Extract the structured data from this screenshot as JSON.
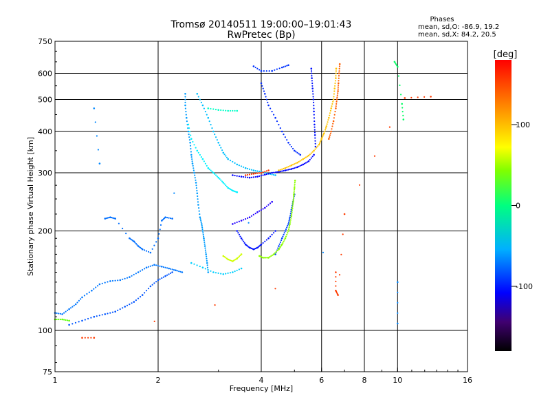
{
  "chart_data": {
    "type": "scatter",
    "title": "Tromsø 20140511 19:00:00–19:01:43",
    "subtitle": "RwPretec (Bp)",
    "stats": {
      "heading": "Phases",
      "line1": "mean, sd,O: -86.9, 19.2",
      "line2": "mean, sd,X:  84.2, 20.5"
    },
    "xlabel": "Frequency [MHz]",
    "ylabel": "Stationary phase Virtual Height [km]",
    "x_scale": "log",
    "y_scale": "log",
    "xlim": [
      1,
      16
    ],
    "ylim": [
      75,
      750
    ],
    "x_ticks": [
      1,
      2,
      4,
      6,
      8,
      10,
      16
    ],
    "y_ticks": [
      75,
      100,
      200,
      300,
      400,
      500,
      600,
      750
    ],
    "x_gridlines": [
      2,
      4,
      6,
      8,
      10
    ],
    "y_gridlines": [
      100,
      200,
      300,
      400,
      500,
      600
    ],
    "grid": true,
    "colorbar": {
      "label": "[deg]",
      "range": [
        -180,
        180
      ],
      "ticks": [
        -100,
        0,
        100
      ]
    },
    "series": [
      {
        "phase": -95,
        "points": [
          [
            1.0,
            113
          ],
          [
            1.05,
            112
          ],
          [
            1.1,
            116
          ],
          [
            1.15,
            120
          ],
          [
            1.2,
            126
          ],
          [
            1.28,
            132
          ],
          [
            1.35,
            138
          ],
          [
            1.45,
            141
          ],
          [
            1.55,
            142
          ],
          [
            1.65,
            145
          ],
          [
            1.75,
            150
          ],
          [
            1.85,
            155
          ],
          [
            1.95,
            158
          ],
          [
            2.05,
            156
          ],
          [
            2.15,
            154
          ],
          [
            2.25,
            152
          ],
          [
            2.35,
            150
          ]
        ]
      },
      {
        "phase": 45,
        "points": [
          [
            1.0,
            108
          ],
          [
            1.05,
            108
          ],
          [
            1.1,
            107
          ]
        ]
      },
      {
        "phase": -105,
        "points": [
          [
            1.1,
            104
          ],
          [
            1.2,
            107
          ],
          [
            1.3,
            110
          ],
          [
            1.4,
            112
          ],
          [
            1.5,
            114
          ],
          [
            1.6,
            118
          ],
          [
            1.7,
            122
          ],
          [
            1.8,
            128
          ],
          [
            1.9,
            136
          ],
          [
            2.0,
            142
          ],
          [
            2.1,
            146
          ],
          [
            2.2,
            150
          ]
        ]
      },
      {
        "phase": -98,
        "points": [
          [
            1.4,
            218
          ],
          [
            1.45,
            220
          ],
          [
            1.5,
            218
          ],
          [
            1.65,
            190
          ],
          [
            1.7,
            186
          ],
          [
            1.75,
            180
          ],
          [
            1.8,
            176
          ],
          [
            1.9,
            172
          ],
          [
            2.0,
            190
          ],
          [
            2.05,
            215
          ],
          [
            2.1,
            220
          ],
          [
            2.2,
            218
          ]
        ]
      },
      {
        "phase": -85,
        "points": [
          [
            2.4,
            520
          ],
          [
            2.4,
            480
          ],
          [
            2.42,
            440
          ],
          [
            2.45,
            400
          ],
          [
            2.48,
            370
          ],
          [
            2.5,
            340
          ],
          [
            2.52,
            320
          ],
          [
            2.55,
            300
          ],
          [
            2.58,
            280
          ],
          [
            2.6,
            260
          ],
          [
            2.62,
            240
          ],
          [
            2.65,
            220
          ],
          [
            2.68,
            210
          ],
          [
            2.7,
            200
          ],
          [
            2.72,
            190
          ],
          [
            2.74,
            180
          ],
          [
            2.76,
            170
          ],
          [
            2.78,
            160
          ],
          [
            2.8,
            150
          ]
        ]
      },
      {
        "phase": -60,
        "points": [
          [
            2.45,
            420
          ],
          [
            2.5,
            380
          ],
          [
            2.6,
            350
          ],
          [
            2.7,
            330
          ],
          [
            2.8,
            310
          ],
          [
            2.9,
            300
          ],
          [
            3.0,
            290
          ],
          [
            3.1,
            280
          ],
          [
            3.2,
            270
          ],
          [
            3.3,
            265
          ],
          [
            3.4,
            262
          ]
        ]
      },
      {
        "phase": -75,
        "points": [
          [
            2.6,
            520
          ],
          [
            2.7,
            480
          ],
          [
            2.8,
            440
          ],
          [
            2.9,
            400
          ],
          [
            3.0,
            370
          ],
          [
            3.1,
            345
          ],
          [
            3.2,
            330
          ],
          [
            3.4,
            318
          ],
          [
            3.6,
            310
          ],
          [
            3.8,
            305
          ],
          [
            4.0,
            302
          ],
          [
            4.2,
            298
          ],
          [
            4.4,
            295
          ]
        ]
      },
      {
        "phase": -130,
        "points": [
          [
            3.3,
            295
          ],
          [
            3.5,
            292
          ],
          [
            3.7,
            290
          ],
          [
            3.9,
            292
          ],
          [
            4.1,
            296
          ],
          [
            4.3,
            300
          ],
          [
            4.5,
            302
          ],
          [
            4.7,
            305
          ],
          [
            4.9,
            308
          ],
          [
            5.1,
            312
          ],
          [
            5.3,
            318
          ],
          [
            5.5,
            325
          ],
          [
            5.7,
            340
          ]
        ]
      },
      {
        "phase": -125,
        "points": [
          [
            5.6,
            620
          ],
          [
            5.62,
            580
          ],
          [
            5.65,
            540
          ],
          [
            5.68,
            500
          ],
          [
            5.7,
            460
          ],
          [
            5.72,
            420
          ],
          [
            5.74,
            390
          ],
          [
            5.76,
            360
          ]
        ]
      },
      {
        "phase": -118,
        "points": [
          [
            4.0,
            560
          ],
          [
            4.1,
            520
          ],
          [
            4.2,
            480
          ],
          [
            4.4,
            440
          ],
          [
            4.6,
            400
          ],
          [
            4.8,
            370
          ],
          [
            5.0,
            350
          ],
          [
            5.2,
            340
          ]
        ]
      },
      {
        "phase": -110,
        "points": [
          [
            4.4,
            170
          ],
          [
            4.5,
            180
          ],
          [
            4.6,
            190
          ],
          [
            4.7,
            200
          ],
          [
            4.8,
            210
          ],
          [
            4.85,
            220
          ],
          [
            4.9,
            232
          ],
          [
            4.95,
            245
          ],
          [
            5.0,
            258
          ]
        ]
      },
      {
        "phase": -125,
        "points": [
          [
            3.4,
            200
          ],
          [
            3.5,
            190
          ],
          [
            3.6,
            182
          ],
          [
            3.7,
            178
          ],
          [
            3.8,
            176
          ],
          [
            3.9,
            178
          ],
          [
            4.0,
            182
          ],
          [
            4.2,
            190
          ],
          [
            4.4,
            200
          ]
        ]
      },
      {
        "phase": -70,
        "points": [
          [
            2.5,
            160
          ],
          [
            2.7,
            155
          ],
          [
            2.9,
            150
          ],
          [
            3.1,
            148
          ],
          [
            3.3,
            150
          ],
          [
            3.5,
            154
          ]
        ]
      },
      {
        "phase": -140,
        "points": [
          [
            3.3,
            210
          ],
          [
            3.5,
            215
          ],
          [
            3.7,
            220
          ],
          [
            3.9,
            228
          ],
          [
            4.1,
            235
          ],
          [
            4.3,
            245
          ]
        ]
      },
      {
        "phase": 60,
        "points": [
          [
            3.95,
            168
          ],
          [
            4.05,
            166
          ],
          [
            4.2,
            166
          ],
          [
            4.35,
            170
          ],
          [
            4.5,
            176
          ],
          [
            4.6,
            182
          ],
          [
            4.7,
            190
          ],
          [
            4.8,
            200
          ],
          [
            4.85,
            210
          ],
          [
            4.9,
            222
          ],
          [
            4.93,
            234
          ],
          [
            4.96,
            246
          ],
          [
            4.98,
            258
          ],
          [
            5.0,
            270
          ],
          [
            5.02,
            284
          ]
        ]
      },
      {
        "phase": 80,
        "points": [
          [
            3.1,
            168
          ],
          [
            3.2,
            164
          ],
          [
            3.3,
            162
          ],
          [
            3.4,
            165
          ],
          [
            3.5,
            170
          ]
        ]
      },
      {
        "phase": 150,
        "points": [
          [
            3.6,
            295
          ],
          [
            3.8,
            298
          ],
          [
            4.0,
            300
          ],
          [
            4.2,
            305
          ]
        ]
      },
      {
        "phase": 110,
        "points": [
          [
            4.5,
            305
          ],
          [
            4.7,
            310
          ],
          [
            4.9,
            316
          ],
          [
            5.1,
            322
          ],
          [
            5.3,
            330
          ],
          [
            5.5,
            338
          ],
          [
            5.7,
            350
          ],
          [
            5.9,
            365
          ],
          [
            6.0,
            380
          ],
          [
            6.1,
            395
          ],
          [
            6.2,
            415
          ],
          [
            6.3,
            440
          ],
          [
            6.4,
            470
          ],
          [
            6.5,
            500
          ],
          [
            6.55,
            540
          ],
          [
            6.6,
            580
          ],
          [
            6.62,
            620
          ]
        ]
      },
      {
        "phase": 140,
        "points": [
          [
            6.3,
            380
          ],
          [
            6.4,
            400
          ],
          [
            6.5,
            430
          ],
          [
            6.6,
            470
          ],
          [
            6.65,
            500
          ],
          [
            6.7,
            530
          ],
          [
            6.72,
            560
          ],
          [
            6.75,
            600
          ],
          [
            6.78,
            640
          ]
        ]
      },
      {
        "phase": -115,
        "points": [
          [
            3.8,
            630
          ],
          [
            4.0,
            610
          ],
          [
            4.3,
            610
          ],
          [
            4.6,
            625
          ],
          [
            4.8,
            635
          ]
        ]
      },
      {
        "phase": -40,
        "points": [
          [
            2.8,
            470
          ],
          [
            3.0,
            465
          ],
          [
            3.2,
            462
          ],
          [
            3.4,
            462
          ]
        ]
      },
      {
        "phase": 150,
        "points": [
          [
            1.2,
            95
          ],
          [
            1.3,
            95
          ],
          [
            6.6,
            150
          ],
          [
            6.6,
            132
          ],
          [
            6.7,
            128
          ],
          [
            7.0,
            225
          ],
          [
            10.5,
            505
          ],
          [
            12.5,
            510
          ]
        ]
      },
      {
        "phase": -10,
        "points": [
          [
            9.8,
            650
          ],
          [
            10.0,
            628
          ],
          [
            10.3,
            485
          ],
          [
            10.4,
            435
          ]
        ]
      },
      {
        "phase": -90,
        "points": [
          [
            1.3,
            470
          ],
          [
            1.35,
            320
          ],
          [
            10.0,
            140
          ],
          [
            10.0,
            105
          ]
        ]
      }
    ]
  }
}
